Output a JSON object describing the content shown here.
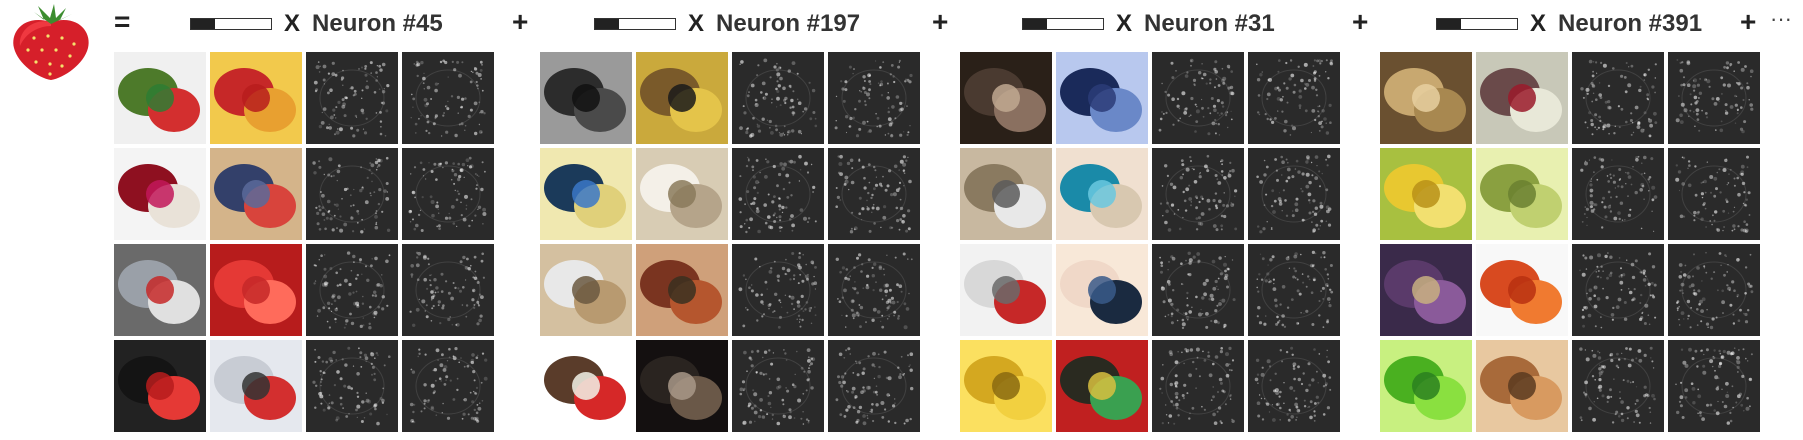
{
  "equals": "=",
  "plus": "+",
  "times": "X",
  "ellipsis": "···",
  "target": {
    "icon": "strawberry-icon"
  },
  "groups": [
    {
      "label": "Neuron #45",
      "weight": 0.3,
      "photos": [
        "vegetables-icon",
        "cherries-icon",
        "pomegranate-icon",
        "glove-tomato-icon",
        "toy-robot-icon",
        "red-surface-icon",
        "bell-pepper-icon",
        "joystick-icon"
      ]
    },
    {
      "label": "Neuron #197",
      "weight": 0.3,
      "photos": [
        "speaker-grille-icon",
        "yellow-fish-icon",
        "sea-slug-icon",
        "thimble-icon",
        "stingray-icon",
        "bookshelf-icon",
        "toadstool-icon",
        "salt-shaker-icon"
      ]
    },
    {
      "label": "Neuron #31",
      "weight": 0.3,
      "photos": [
        "bead-texture-icon",
        "microphone-icon",
        "handheld-device-icon",
        "pufferfish-icon",
        "heater-icon",
        "beetle-icon",
        "corn-icon",
        "traffic-light-icon"
      ]
    },
    {
      "label": "Neuron #391",
      "weight": 0.3,
      "photos": [
        "straw-hat-icon",
        "fuzzy-fruit-icon",
        "yellow-leaf-icon",
        "custard-apple-icon",
        "purple-cloth-icon",
        "red-leaf-icon",
        "green-strawberry-icon",
        "terrier-dog-icon"
      ]
    }
  ]
}
